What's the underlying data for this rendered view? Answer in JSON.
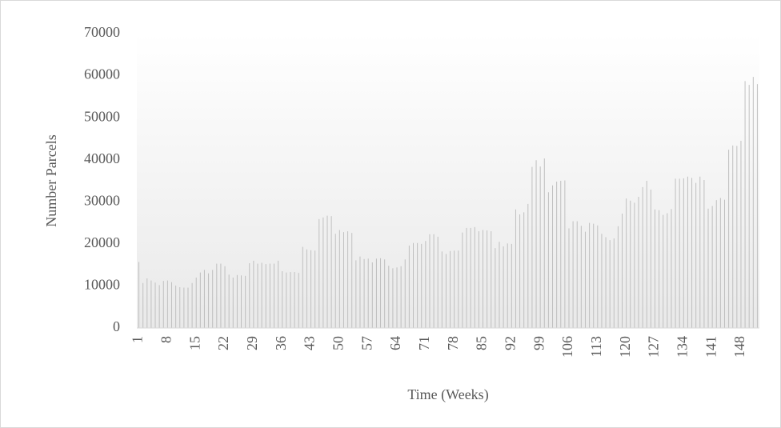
{
  "chart_data": {
    "type": "line",
    "x_label": "Time (Weeks)",
    "y_label": "Number Parcels",
    "categories": [
      1,
      null,
      null,
      null,
      null,
      null,
      null,
      8,
      null,
      null,
      null,
      null,
      null,
      null,
      15,
      null,
      null,
      null,
      null,
      null,
      null,
      22,
      null,
      null,
      null,
      null,
      null,
      null,
      29,
      null,
      null,
      null,
      null,
      null,
      null,
      36,
      null,
      null,
      null,
      null,
      null,
      null,
      43,
      null,
      null,
      null,
      null,
      null,
      null,
      50,
      null,
      null,
      null,
      null,
      null,
      null,
      57,
      null,
      null,
      null,
      null,
      null,
      null,
      64,
      null,
      null,
      null,
      null,
      null,
      null,
      71,
      null,
      null,
      null,
      null,
      null,
      null,
      78,
      null,
      null,
      null,
      null,
      null,
      null,
      85,
      null,
      null,
      null,
      null,
      null,
      null,
      92,
      null,
      null,
      null,
      null,
      null,
      null,
      99,
      null,
      null,
      null,
      null,
      null,
      null,
      106,
      null,
      null,
      null,
      null,
      null,
      null,
      113,
      null,
      null,
      null,
      null,
      null,
      null,
      120,
      null,
      null,
      null,
      null,
      null,
      null,
      127,
      null,
      null,
      null,
      null,
      null,
      null,
      134,
      null,
      null,
      null,
      null,
      null,
      null,
      141,
      null,
      null,
      null,
      null,
      null,
      null,
      148,
      null,
      null,
      null,
      null
    ],
    "values": [
      15700,
      10700,
      11800,
      11300,
      10800,
      10200,
      11200,
      11300,
      10900,
      10100,
      9700,
      9600,
      9600,
      10700,
      12000,
      13200,
      13800,
      13000,
      13800,
      15300,
      15300,
      14700,
      12700,
      12000,
      12600,
      12500,
      12400,
      15400,
      16000,
      15300,
      15500,
      15200,
      15300,
      15300,
      16000,
      13500,
      13200,
      13300,
      13300,
      13100,
      19300,
      18700,
      18500,
      18400,
      25900,
      26300,
      26700,
      26600,
      22400,
      23300,
      22800,
      23000,
      22600,
      16100,
      17000,
      16400,
      16500,
      15600,
      16500,
      16600,
      16300,
      14800,
      14200,
      14400,
      14700,
      16300,
      19600,
      20200,
      20200,
      20000,
      20700,
      22300,
      22300,
      21700,
      18200,
      17600,
      18300,
      18400,
      18400,
      22700,
      23800,
      23800,
      24000,
      23000,
      23300,
      23200,
      23000,
      19000,
      20500,
      19400,
      20100,
      20000,
      28200,
      27000,
      27500,
      29500,
      38300,
      39900,
      38400,
      40300,
      32300,
      33900,
      34800,
      35000,
      35100,
      23700,
      25400,
      25400,
      24300,
      22900,
      25000,
      24800,
      24400,
      22400,
      21600,
      20900,
      21300,
      24200,
      27200,
      30800,
      30300,
      29800,
      31200,
      33500,
      35000,
      32900,
      28200,
      28000,
      26900,
      27300,
      28300,
      35500,
      35500,
      35600,
      36000,
      35700,
      34500,
      36000,
      35200,
      28400,
      29000,
      30400,
      30900,
      30500,
      42400,
      43400,
      43300,
      44500,
      58700,
      57800,
      59700,
      58000
    ],
    "color": "#4472c4",
    "drop_lines": true,
    "drop_line_color": "#bfbfbf",
    "ylim": [
      0,
      70000
    ],
    "yticks": [
      0,
      10000,
      20000,
      30000,
      40000,
      50000,
      60000,
      70000
    ]
  }
}
